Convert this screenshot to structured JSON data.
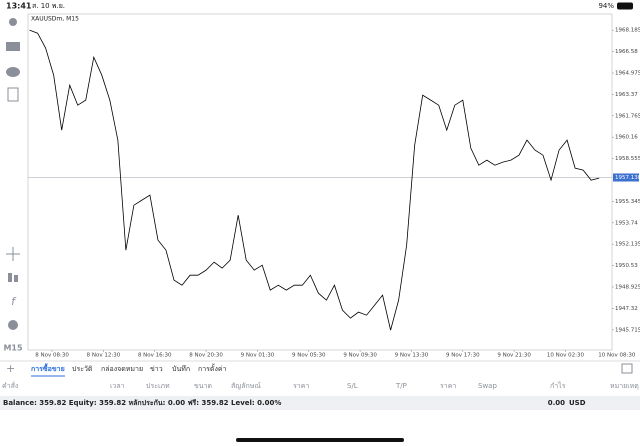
{
  "status_bar": {
    "time": "13:41",
    "date": "ส. 10 พ.ย.",
    "battery": "94%"
  },
  "chart_data": {
    "type": "line",
    "symbol": "XAUUSDm, M15",
    "color": "#000000",
    "x": [
      -7,
      -4.5,
      -2,
      0.5,
      3,
      5.5,
      8,
      10.5,
      13,
      15.5,
      18,
      20.5,
      23,
      25.5,
      28,
      30.5,
      33,
      35.5,
      38,
      40.5,
      43,
      45.5,
      48,
      50.5,
      53,
      55.5,
      58,
      60.5,
      63,
      65.5,
      68,
      70.5,
      73,
      75.5,
      78,
      80.5,
      83,
      85.5,
      88,
      90.5,
      93,
      95.5,
      98,
      100.5,
      103,
      105.5,
      108,
      110.5,
      113,
      115.5,
      118,
      120.5,
      123,
      125.5,
      128,
      130.5,
      133,
      135.5,
      138,
      140.5,
      143,
      145.5,
      148,
      150.5,
      153,
      155.5,
      158,
      160.5,
      163,
      165.5,
      168,
      170.5
    ],
    "values": [
      1968.19,
      1967.96,
      1966.84,
      1964.81,
      1960.69,
      1964.06,
      1962.56,
      1962.94,
      1966.16,
      1964.81,
      1962.94,
      1959.94,
      1951.69,
      1955.06,
      1955.44,
      1955.81,
      1952.44,
      1951.69,
      1949.44,
      1949.06,
      1949.81,
      1949.81,
      1950.19,
      1950.79,
      1950.34,
      1950.94,
      1954.31,
      1950.94,
      1950.19,
      1950.56,
      1948.69,
      1949.06,
      1948.69,
      1949.06,
      1949.06,
      1949.81,
      1948.46,
      1947.94,
      1949.06,
      1947.19,
      1946.59,
      1947.04,
      1946.81,
      1947.56,
      1948.31,
      1945.69,
      1947.94,
      1952.06,
      1959.56,
      1963.31,
      1962.94,
      1962.56,
      1960.69,
      1962.56,
      1962.94,
      1959.34,
      1958.06,
      1958.44,
      1958.06,
      1958.29,
      1958.44,
      1958.81,
      1959.94,
      1959.19,
      1958.81,
      1956.94,
      1959.19,
      1959.94,
      1957.84,
      1957.69,
      1956.94,
      1957.09
    ],
    "xlim": [
      -7.5,
      174.5
    ],
    "xticks": [
      {
        "value": 0,
        "label": "8 Nov 08:30"
      },
      {
        "value": 16,
        "label": "8 Nov 12:30"
      },
      {
        "value": 32,
        "label": "8 Nov 16:30"
      },
      {
        "value": 48,
        "label": "8 Nov 20:30"
      },
      {
        "value": 64,
        "label": "9 Nov 01:30"
      },
      {
        "value": 80,
        "label": "9 Nov 05:30"
      },
      {
        "value": 96,
        "label": "9 Nov 09:30"
      },
      {
        "value": 112,
        "label": "9 Nov 13:30"
      },
      {
        "value": 128,
        "label": "9 Nov 17:30"
      },
      {
        "value": 144,
        "label": "9 Nov 21:30"
      },
      {
        "value": 160,
        "label": "10 Nov 02:30"
      },
      {
        "value": 176,
        "label": "10 Nov 08:30"
      }
    ],
    "ylim": [
      1944.2,
      1969.4
    ],
    "yticks": [
      1945.715,
      1947.32,
      1948.925,
      1950.53,
      1952.135,
      1953.74,
      1955.345,
      1958.555,
      1960.16,
      1961.765,
      1963.37,
      1964.975,
      1966.58,
      1968.185
    ],
    "current_price": 1957.138
  },
  "toolbar": {
    "timeframe": "M15"
  },
  "tabs": [
    "การซื้อขาย",
    "ประวัติ",
    "กล่องจดหมาย",
    "ข่าว",
    "บันทึก",
    "การตั้งค่า"
  ],
  "active_tab": 0,
  "table": {
    "headers": [
      "คำสั่ง",
      "เวลา",
      "ประเภท",
      "ขนาด",
      "สัญลักษณ์",
      "ราคา",
      "S/L",
      "T/P",
      "ราคา",
      "Swap",
      "กำไร",
      "หมายเหตุ"
    ]
  },
  "footer": {
    "account": "Balance: 359.82 Equity: 359.82 หลักประกัน: 0.00 ฟรี: 359.82 Level: 0.00%",
    "profit": "0.00",
    "currency": "USD"
  }
}
